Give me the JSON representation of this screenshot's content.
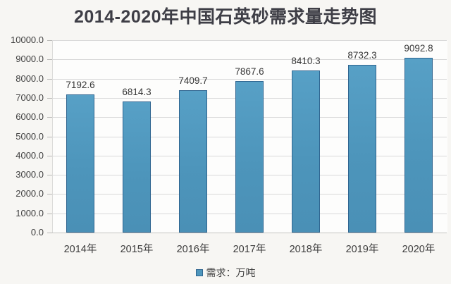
{
  "chart_data": {
    "type": "bar",
    "title": "2014-2020年中国石英砂需求量走势图",
    "categories": [
      "2014年",
      "2015年",
      "2016年",
      "2017年",
      "2018年",
      "2019年",
      "2020年"
    ],
    "values": [
      7192.6,
      6814.3,
      7409.7,
      7867.6,
      8410.3,
      8732.3,
      9092.8
    ],
    "data_labels": [
      "7192.6",
      "6814.3",
      "7409.7",
      "7867.6",
      "8410.3",
      "8732.3",
      "9092.8"
    ],
    "series_name": "需求：万吨",
    "xlabel": "",
    "ylabel": "",
    "ylim": [
      0,
      10000
    ],
    "ytick_step": 1000,
    "ytick_labels": [
      "0.0",
      "1000.0",
      "2000.0",
      "3000.0",
      "4000.0",
      "5000.0",
      "6000.0",
      "7000.0",
      "8000.0",
      "9000.0",
      "10000.0"
    ],
    "grid": "horizontal",
    "legend_position": "bottom"
  },
  "legend": {
    "label": "需求：万吨",
    "swatch_color": "#4e96bc"
  },
  "colors": {
    "bar_fill": "#4e96bc",
    "bar_border": "#2f6590",
    "gridline": "#d9d9d9",
    "axis_line": "#c3c3c1",
    "title_text": "#3e3e46",
    "tick_text": "#404040",
    "value_text": "#373737",
    "background": "#f7f6f3"
  }
}
